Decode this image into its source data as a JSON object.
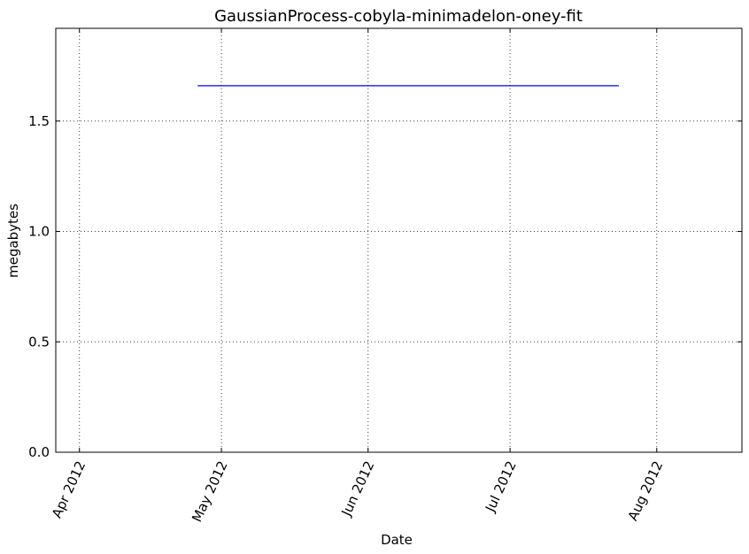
{
  "chart_data": {
    "type": "line",
    "title": "GaussianProcess-cobyla-minimadelon-oney-fit",
    "xlabel": "Date",
    "ylabel": "megabytes",
    "xlim": [
      "2012-03-27",
      "2012-08-19"
    ],
    "ylim": [
      0,
      1.92
    ],
    "x_ticks": [
      {
        "date": "2012-04-01",
        "label": "Apr 2012"
      },
      {
        "date": "2012-05-01",
        "label": "May 2012"
      },
      {
        "date": "2012-06-01",
        "label": "Jun 2012"
      },
      {
        "date": "2012-07-01",
        "label": "Jul 2012"
      },
      {
        "date": "2012-08-01",
        "label": "Aug 2012"
      }
    ],
    "y_ticks": [
      {
        "value": 0.0,
        "label": "0.0"
      },
      {
        "value": 0.5,
        "label": "0.5"
      },
      {
        "value": 1.0,
        "label": "1.0"
      },
      {
        "value": 1.5,
        "label": "1.5"
      }
    ],
    "grid": true,
    "series": [
      {
        "color": "#0000ff",
        "points": [
          {
            "x": "2012-04-26",
            "y": 1.66
          },
          {
            "x": "2012-07-24",
            "y": 1.66
          }
        ]
      }
    ]
  }
}
